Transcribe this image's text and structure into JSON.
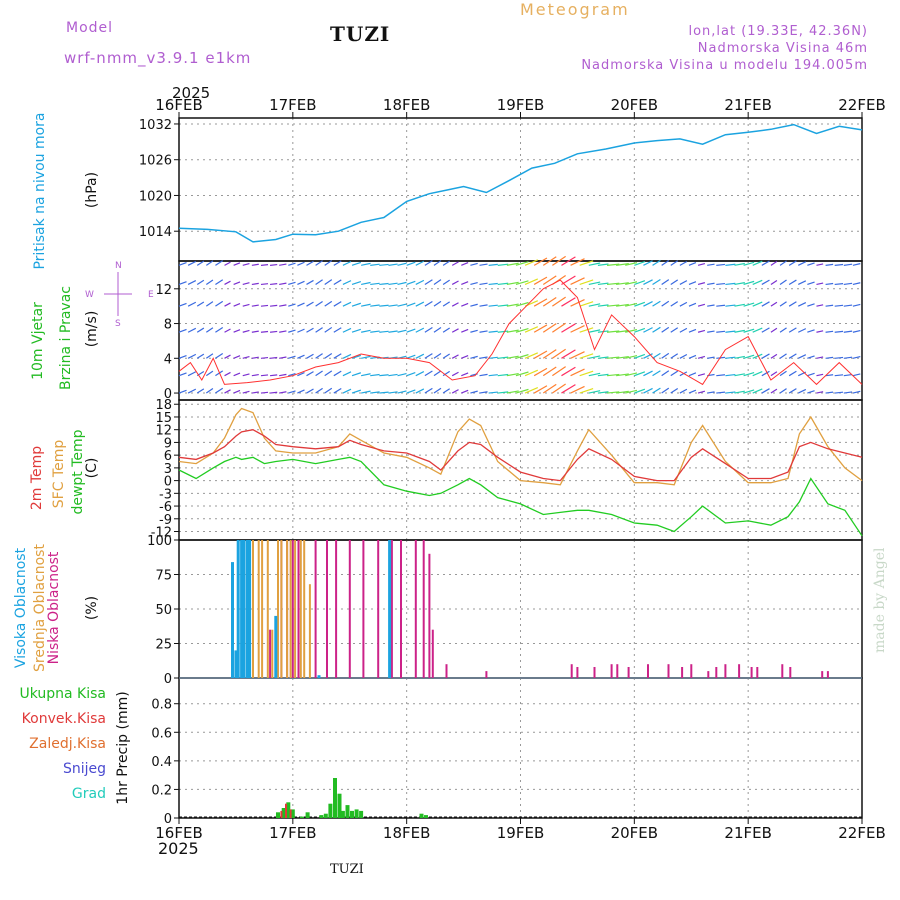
{
  "header": {
    "model_label": "Model",
    "model_name": "wrf-nmm_v3.9.1 e1km",
    "station": "TUZI",
    "title": "Meteogram",
    "coords": "lon,lat (19.33E, 42.36N)",
    "altitude": "Nadmorska Visina 46m",
    "model_altitude": "Nadmorska Visina u modelu 194.005m"
  },
  "footer": {
    "station": "TUZI",
    "watermark": "made by Angel"
  },
  "colors": {
    "pressure": "#1ba3e0",
    "temp2m": "#e03a3a",
    "sfc": "#e0a040",
    "dew": "#22cc22",
    "high_cloud": "#1ba3e0",
    "mid_cloud": "#e0a040",
    "low_cloud": "#cc2288",
    "total_precip": "#22bb22",
    "conv_precip": "#e03a3a",
    "frz_precip": "#e07030",
    "snow": "#4a4ad0",
    "graupel": "#22ccbb",
    "wind_speed": "#ff3030",
    "gust": "#000000"
  },
  "time_axis": {
    "year": "2025",
    "ticks": [
      "16FEB",
      "17FEB",
      "18FEB",
      "19FEB",
      "20FEB",
      "21FEB",
      "22FEB"
    ]
  },
  "panels": {
    "pressure": {
      "label_name": "Pritisak na nivou mora",
      "label_unit": "(hPa)"
    },
    "wind": {
      "label_name": "10m Vjetar",
      "label_name2": "Brzina i Pravac",
      "label_unit": "(m/s)",
      "compass_n": "N",
      "compass_w": "W",
      "compass_e": "E",
      "compass_s": "S"
    },
    "temp": {
      "label_a": "2m Temp",
      "label_b": "SFC Temp",
      "label_c": "dewpt Temp",
      "label_unit": "(C)"
    },
    "cloud": {
      "label_a": "Visoka Oblacnost",
      "label_b": "Srednja Oblacnost",
      "label_c": "Niska Oblacnost",
      "label_unit": "(%)"
    },
    "precip": {
      "legend": [
        "Ukupna Kisa",
        "Konvek.Kisa",
        "Zaledj.Kisa",
        "Snijeg",
        "Grad"
      ],
      "label_name": "1hr Precip (mm)"
    }
  },
  "chart_data": [
    {
      "type": "line",
      "title": "",
      "ylabel": "Pritisak na nivou mora (hPa)",
      "ylim": [
        1009,
        1033
      ],
      "yticks": [
        1014,
        1020,
        1026,
        1032
      ],
      "x_days": [
        0,
        0.25,
        0.5,
        0.65,
        0.85,
        1.0,
        1.2,
        1.4,
        1.6,
        1.8,
        2.0,
        2.2,
        2.35,
        2.5,
        2.7,
        2.9,
        3.1,
        3.3,
        3.5,
        3.75,
        4.0,
        4.2,
        4.4,
        4.6,
        4.8,
        5.0,
        5.2,
        5.4,
        5.6,
        5.8,
        6.0
      ],
      "series": [
        {
          "name": "Pritisak na nivou mora",
          "values": [
            1014.5,
            1014.3,
            1013.9,
            1012.2,
            1012.6,
            1013.5,
            1013.4,
            1014.0,
            1015.5,
            1016.3,
            1019.0,
            1020.3,
            1020.9,
            1021.5,
            1020.5,
            1022.5,
            1024.6,
            1025.4,
            1027.0,
            1027.8,
            1028.8,
            1029.2,
            1029.5,
            1028.6,
            1030.2,
            1030.6,
            1031.1,
            1031.9,
            1030.4,
            1031.6,
            1031.0
          ]
        }
      ]
    },
    {
      "type": "line",
      "title": "",
      "ylabel": "10m Vjetar Brzina i Pravac (m/s)",
      "ylim": [
        -0.8,
        15.2
      ],
      "yticks": [
        0,
        4,
        8,
        12
      ],
      "x_days": [
        0,
        0.1,
        0.2,
        0.3,
        0.4,
        0.6,
        0.8,
        1.0,
        1.2,
        1.4,
        1.6,
        1.8,
        2.0,
        2.2,
        2.4,
        2.6,
        2.75,
        2.9,
        3.05,
        3.2,
        3.35,
        3.5,
        3.65,
        3.8,
        4.0,
        4.2,
        4.4,
        4.6,
        4.8,
        5.0,
        5.2,
        5.4,
        5.6,
        5.8,
        6.0
      ],
      "series": [
        {
          "name": "Brzina",
          "values": [
            2.5,
            3.5,
            1.5,
            4.0,
            1.0,
            1.2,
            1.5,
            2.0,
            3.0,
            3.5,
            4.5,
            4.0,
            4.0,
            3.5,
            1.5,
            2.0,
            4.5,
            8.0,
            10.0,
            12.0,
            13.0,
            11.0,
            5.0,
            9.0,
            6.5,
            3.5,
            2.5,
            1.0,
            5.0,
            6.5,
            1.5,
            3.5,
            1.0,
            3.5,
            1.0
          ]
        }
      ]
    },
    {
      "type": "line",
      "title": "",
      "ylabel": "Temp (C)",
      "ylim": [
        -14,
        19
      ],
      "yticks": [
        -12,
        -9,
        -6,
        -3,
        0,
        3,
        6,
        9,
        12,
        15,
        18
      ],
      "x_days": [
        0,
        0.15,
        0.3,
        0.4,
        0.5,
        0.55,
        0.65,
        0.75,
        0.85,
        1.0,
        1.2,
        1.4,
        1.5,
        1.6,
        1.8,
        2.0,
        2.2,
        2.3,
        2.45,
        2.55,
        2.65,
        2.8,
        3.0,
        3.2,
        3.35,
        3.5,
        3.6,
        3.8,
        4.0,
        4.2,
        4.35,
        4.5,
        4.6,
        4.8,
        5.0,
        5.2,
        5.35,
        5.45,
        5.55,
        5.7,
        5.85,
        6.0
      ],
      "series": [
        {
          "name": "2m Temp",
          "values": [
            5.5,
            5.0,
            6.5,
            8.0,
            10.5,
            11.5,
            12.0,
            10.5,
            8.5,
            8.0,
            7.5,
            8.0,
            9.5,
            8.5,
            7.0,
            6.5,
            4.5,
            2.5,
            7.0,
            9.0,
            8.5,
            5.5,
            2.0,
            0.5,
            0.0,
            5.0,
            7.5,
            5.0,
            1.0,
            0.0,
            0.0,
            5.5,
            7.5,
            4.0,
            0.5,
            0.5,
            2.0,
            8.0,
            9.0,
            7.5,
            6.5,
            5.5
          ]
        },
        {
          "name": "SFC Temp",
          "values": [
            4.5,
            4.0,
            6.5,
            10.0,
            15.5,
            17.0,
            16.0,
            10.0,
            7.0,
            6.5,
            6.5,
            8.0,
            11.0,
            9.5,
            6.5,
            5.5,
            3.0,
            1.5,
            11.5,
            14.5,
            13.0,
            4.5,
            0.0,
            -0.5,
            -1.0,
            7.0,
            12.0,
            6.0,
            -0.5,
            -0.5,
            -1.0,
            9.0,
            13.0,
            4.5,
            -0.5,
            -0.5,
            0.5,
            11.0,
            15.0,
            8.0,
            3.0,
            0.0
          ]
        },
        {
          "name": "dewpt Temp",
          "values": [
            2.5,
            0.5,
            3.0,
            4.5,
            5.5,
            5.0,
            5.5,
            4.0,
            4.5,
            5.0,
            4.0,
            5.0,
            5.5,
            4.5,
            -1.0,
            -2.5,
            -3.5,
            -3.0,
            -1.0,
            0.5,
            -1.0,
            -4.0,
            -5.5,
            -8.0,
            -7.5,
            -7.0,
            -7.0,
            -8.0,
            -10.0,
            -10.5,
            -12.0,
            -8.5,
            -6.0,
            -10.0,
            -9.5,
            -10.5,
            -8.5,
            -5.0,
            0.5,
            -5.5,
            -7.0,
            -13.0
          ]
        }
      ]
    },
    {
      "type": "bar",
      "title": "",
      "ylabel": "Oblacnost (%)",
      "ylim": [
        0,
        100
      ],
      "yticks": [
        0,
        25,
        50,
        75,
        100
      ],
      "series": [
        {
          "name": "Visoka Oblacnost",
          "x_days": [
            0.47,
            0.5,
            0.52,
            0.55,
            0.57,
            0.6,
            0.62,
            0.85,
            1.23,
            1.85
          ],
          "values": [
            84,
            20,
            100,
            100,
            100,
            100,
            100,
            45,
            2,
            100
          ]
        },
        {
          "name": "Srednja Oblacnost",
          "x_days": [
            0.62,
            0.65,
            0.7,
            0.73,
            0.78,
            0.82,
            0.87,
            0.9,
            0.95,
            0.98,
            1.02,
            1.07,
            1.1,
            1.15
          ],
          "values": [
            100,
            100,
            100,
            100,
            100,
            35,
            100,
            100,
            100,
            100,
            100,
            100,
            100,
            68
          ]
        },
        {
          "name": "Niska Oblacnost",
          "x_days": [
            0.6,
            0.8,
            0.9,
            0.95,
            1.0,
            1.05,
            1.2,
            1.3,
            1.38,
            1.5,
            1.62,
            1.75,
            1.87,
            1.95,
            2.08,
            2.15,
            2.2,
            2.23,
            2.35,
            2.7,
            3.45,
            3.5,
            3.65,
            3.8,
            3.85,
            3.95,
            4.12,
            4.3,
            4.42,
            4.5,
            4.65,
            4.72,
            4.8,
            4.92,
            5.03,
            5.08,
            5.3,
            5.37,
            5.65,
            5.7
          ],
          "values": [
            100,
            35,
            100,
            100,
            100,
            100,
            100,
            100,
            100,
            100,
            100,
            100,
            100,
            100,
            100,
            100,
            90,
            35,
            10,
            5,
            10,
            8,
            8,
            10,
            10,
            8,
            10,
            10,
            8,
            10,
            5,
            8,
            10,
            10,
            8,
            8,
            10,
            8,
            5,
            5
          ]
        }
      ]
    },
    {
      "type": "bar",
      "title": "",
      "ylabel": "1hr Precip (mm)",
      "ylim": [
        0,
        0.98
      ],
      "yticks": [
        0,
        0.2,
        0.4,
        0.6,
        0.8
      ],
      "series": [
        {
          "name": "Ukupna Kisa",
          "x_days": [
            0.87,
            0.92,
            0.96,
            1.0,
            1.08,
            1.13,
            1.25,
            1.29,
            1.33,
            1.37,
            1.41,
            1.44,
            1.48,
            1.52,
            1.56,
            1.6,
            2.13,
            2.17
          ],
          "values": [
            0.04,
            0.07,
            0.11,
            0.06,
            0.01,
            0.04,
            0.02,
            0.03,
            0.1,
            0.28,
            0.17,
            0.05,
            0.09,
            0.05,
            0.06,
            0.05,
            0.03,
            0.02
          ]
        },
        {
          "name": "Konvek.Kisa",
          "x_days": [
            0.9,
            0.94,
            0.98
          ],
          "values": [
            0.05,
            0.1,
            0.06
          ]
        },
        {
          "name": "Zaledj.Kisa",
          "x_days": [],
          "values": []
        },
        {
          "name": "Snijeg",
          "x_days": [],
          "values": []
        },
        {
          "name": "Grad",
          "x_days": [],
          "values": []
        }
      ]
    }
  ]
}
